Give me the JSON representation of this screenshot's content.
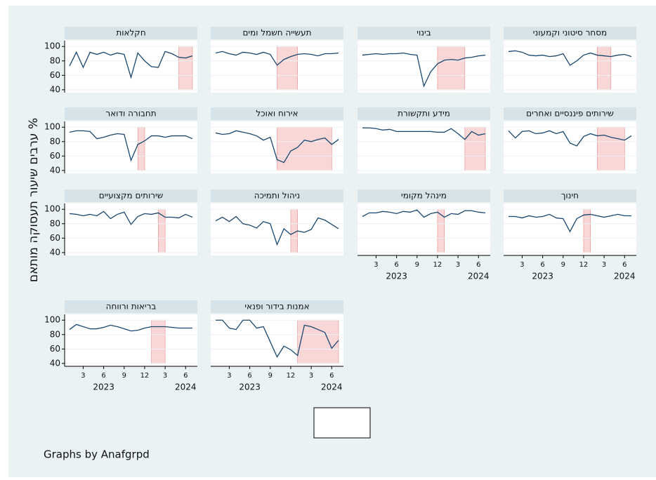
{
  "chart_data": {
    "type": "line",
    "y_title": "ערבים שיעור תעסוקה מותאם %",
    "note": "Graphs by Anafgrpd",
    "color": "#1a476f",
    "shade_color": "#f4b6b6",
    "x": [
      1,
      2,
      3,
      4,
      5,
      6,
      7,
      8,
      9,
      10,
      11,
      12,
      13,
      14,
      15,
      16,
      17,
      18,
      19
    ],
    "xlim": [
      1,
      19
    ],
    "xticks": [
      3,
      6,
      9,
      12,
      {
        "value": 15,
        "label": "3"
      },
      {
        "value": 18,
        "label": "6"
      }
    ],
    "year_labels": [
      {
        "value": 6,
        "label": "2023"
      },
      {
        "value": 18,
        "label": "2024"
      }
    ],
    "ylim": [
      36,
      108
    ],
    "yticks": [
      40,
      60,
      80,
      100
    ],
    "panels": [
      {
        "title": "חקלאות",
        "values": [
          73,
          92,
          71,
          92,
          89,
          92,
          88,
          91,
          89,
          57,
          91,
          80,
          72,
          71,
          93,
          90,
          85,
          84,
          87
        ],
        "shade": [
          17,
          19
        ]
      },
      {
        "title": "תעשייה חשמל ומים",
        "values": [
          91,
          93,
          90,
          88,
          92,
          91,
          89,
          92,
          89,
          74,
          82,
          86,
          89,
          90,
          89,
          87,
          90,
          90,
          91
        ],
        "shade": [
          10,
          13
        ]
      },
      {
        "title": "בינוי",
        "values": [
          88,
          89,
          90,
          89,
          90,
          90,
          91,
          89,
          88,
          45,
          65,
          76,
          81,
          82,
          81,
          84,
          85,
          87,
          88
        ],
        "shade": [
          12,
          16
        ]
      },
      {
        "title": "מסחר סיטוני וקמעוני",
        "values": [
          93,
          94,
          92,
          88,
          87,
          88,
          86,
          87,
          90,
          74,
          80,
          88,
          91,
          88,
          87,
          86,
          88,
          89,
          86
        ],
        "shade": [
          14,
          16
        ]
      },
      {
        "title": "תחבורה ודואר",
        "values": [
          93,
          95,
          95,
          94,
          84,
          86,
          89,
          91,
          90,
          54,
          76,
          81,
          88,
          88,
          86,
          88,
          88,
          88,
          84
        ],
        "shade": [
          11,
          12
        ]
      },
      {
        "title": "אירוח ואוכל",
        "values": [
          92,
          90,
          91,
          95,
          93,
          91,
          88,
          82,
          86,
          55,
          51,
          67,
          72,
          82,
          80,
          83,
          85,
          76,
          83
        ],
        "shade": [
          10,
          18
        ]
      },
      {
        "title": "מידע ותקשורת",
        "values": [
          99,
          99,
          98,
          96,
          97,
          94,
          94,
          94,
          94,
          94,
          94,
          93,
          93,
          98,
          91,
          83,
          94,
          89,
          91
        ],
        "shade": [
          16,
          19
        ]
      },
      {
        "title": "שירותים פיננסיים ואחרים",
        "values": [
          95,
          85,
          94,
          95,
          91,
          92,
          95,
          91,
          94,
          78,
          74,
          87,
          91,
          88,
          89,
          86,
          84,
          82,
          88
        ],
        "shade": [
          14,
          18
        ]
      },
      {
        "title": "שירותים מקצועיים",
        "values": [
          94,
          93,
          91,
          93,
          91,
          97,
          87,
          93,
          96,
          79,
          90,
          94,
          93,
          95,
          89,
          89,
          88,
          93,
          89
        ],
        "shade": [
          14,
          15
        ]
      },
      {
        "title": "ניהול ותמיכה",
        "values": [
          84,
          89,
          83,
          90,
          80,
          78,
          74,
          83,
          80,
          51,
          73,
          65,
          70,
          68,
          72,
          88,
          85,
          79,
          73
        ],
        "shade": [
          12,
          13
        ]
      },
      {
        "title": "מינהל מקומי",
        "values": [
          90,
          95,
          95,
          97,
          96,
          94,
          97,
          96,
          99,
          89,
          94,
          96,
          89,
          94,
          93,
          98,
          98,
          96,
          95
        ],
        "shade": [
          12,
          13
        ]
      },
      {
        "title": "חינוך",
        "values": [
          90,
          90,
          88,
          91,
          89,
          90,
          93,
          88,
          87,
          69,
          87,
          92,
          93,
          91,
          89,
          91,
          93,
          91,
          91
        ],
        "shade": [
          12,
          13
        ]
      },
      {
        "title": "בריאות ורווחה",
        "values": [
          87,
          94,
          91,
          88,
          88,
          90,
          93,
          91,
          88,
          85,
          86,
          89,
          91,
          91,
          91,
          90,
          89,
          89,
          89
        ],
        "shade": [
          13,
          15
        ]
      },
      {
        "title": "אמנות בידור ופנאי",
        "values": [
          100,
          100,
          89,
          87,
          100,
          100,
          89,
          91,
          70,
          49,
          64,
          59,
          51,
          93,
          91,
          87,
          83,
          61,
          72
        ],
        "shade": [
          13,
          19
        ]
      }
    ]
  }
}
